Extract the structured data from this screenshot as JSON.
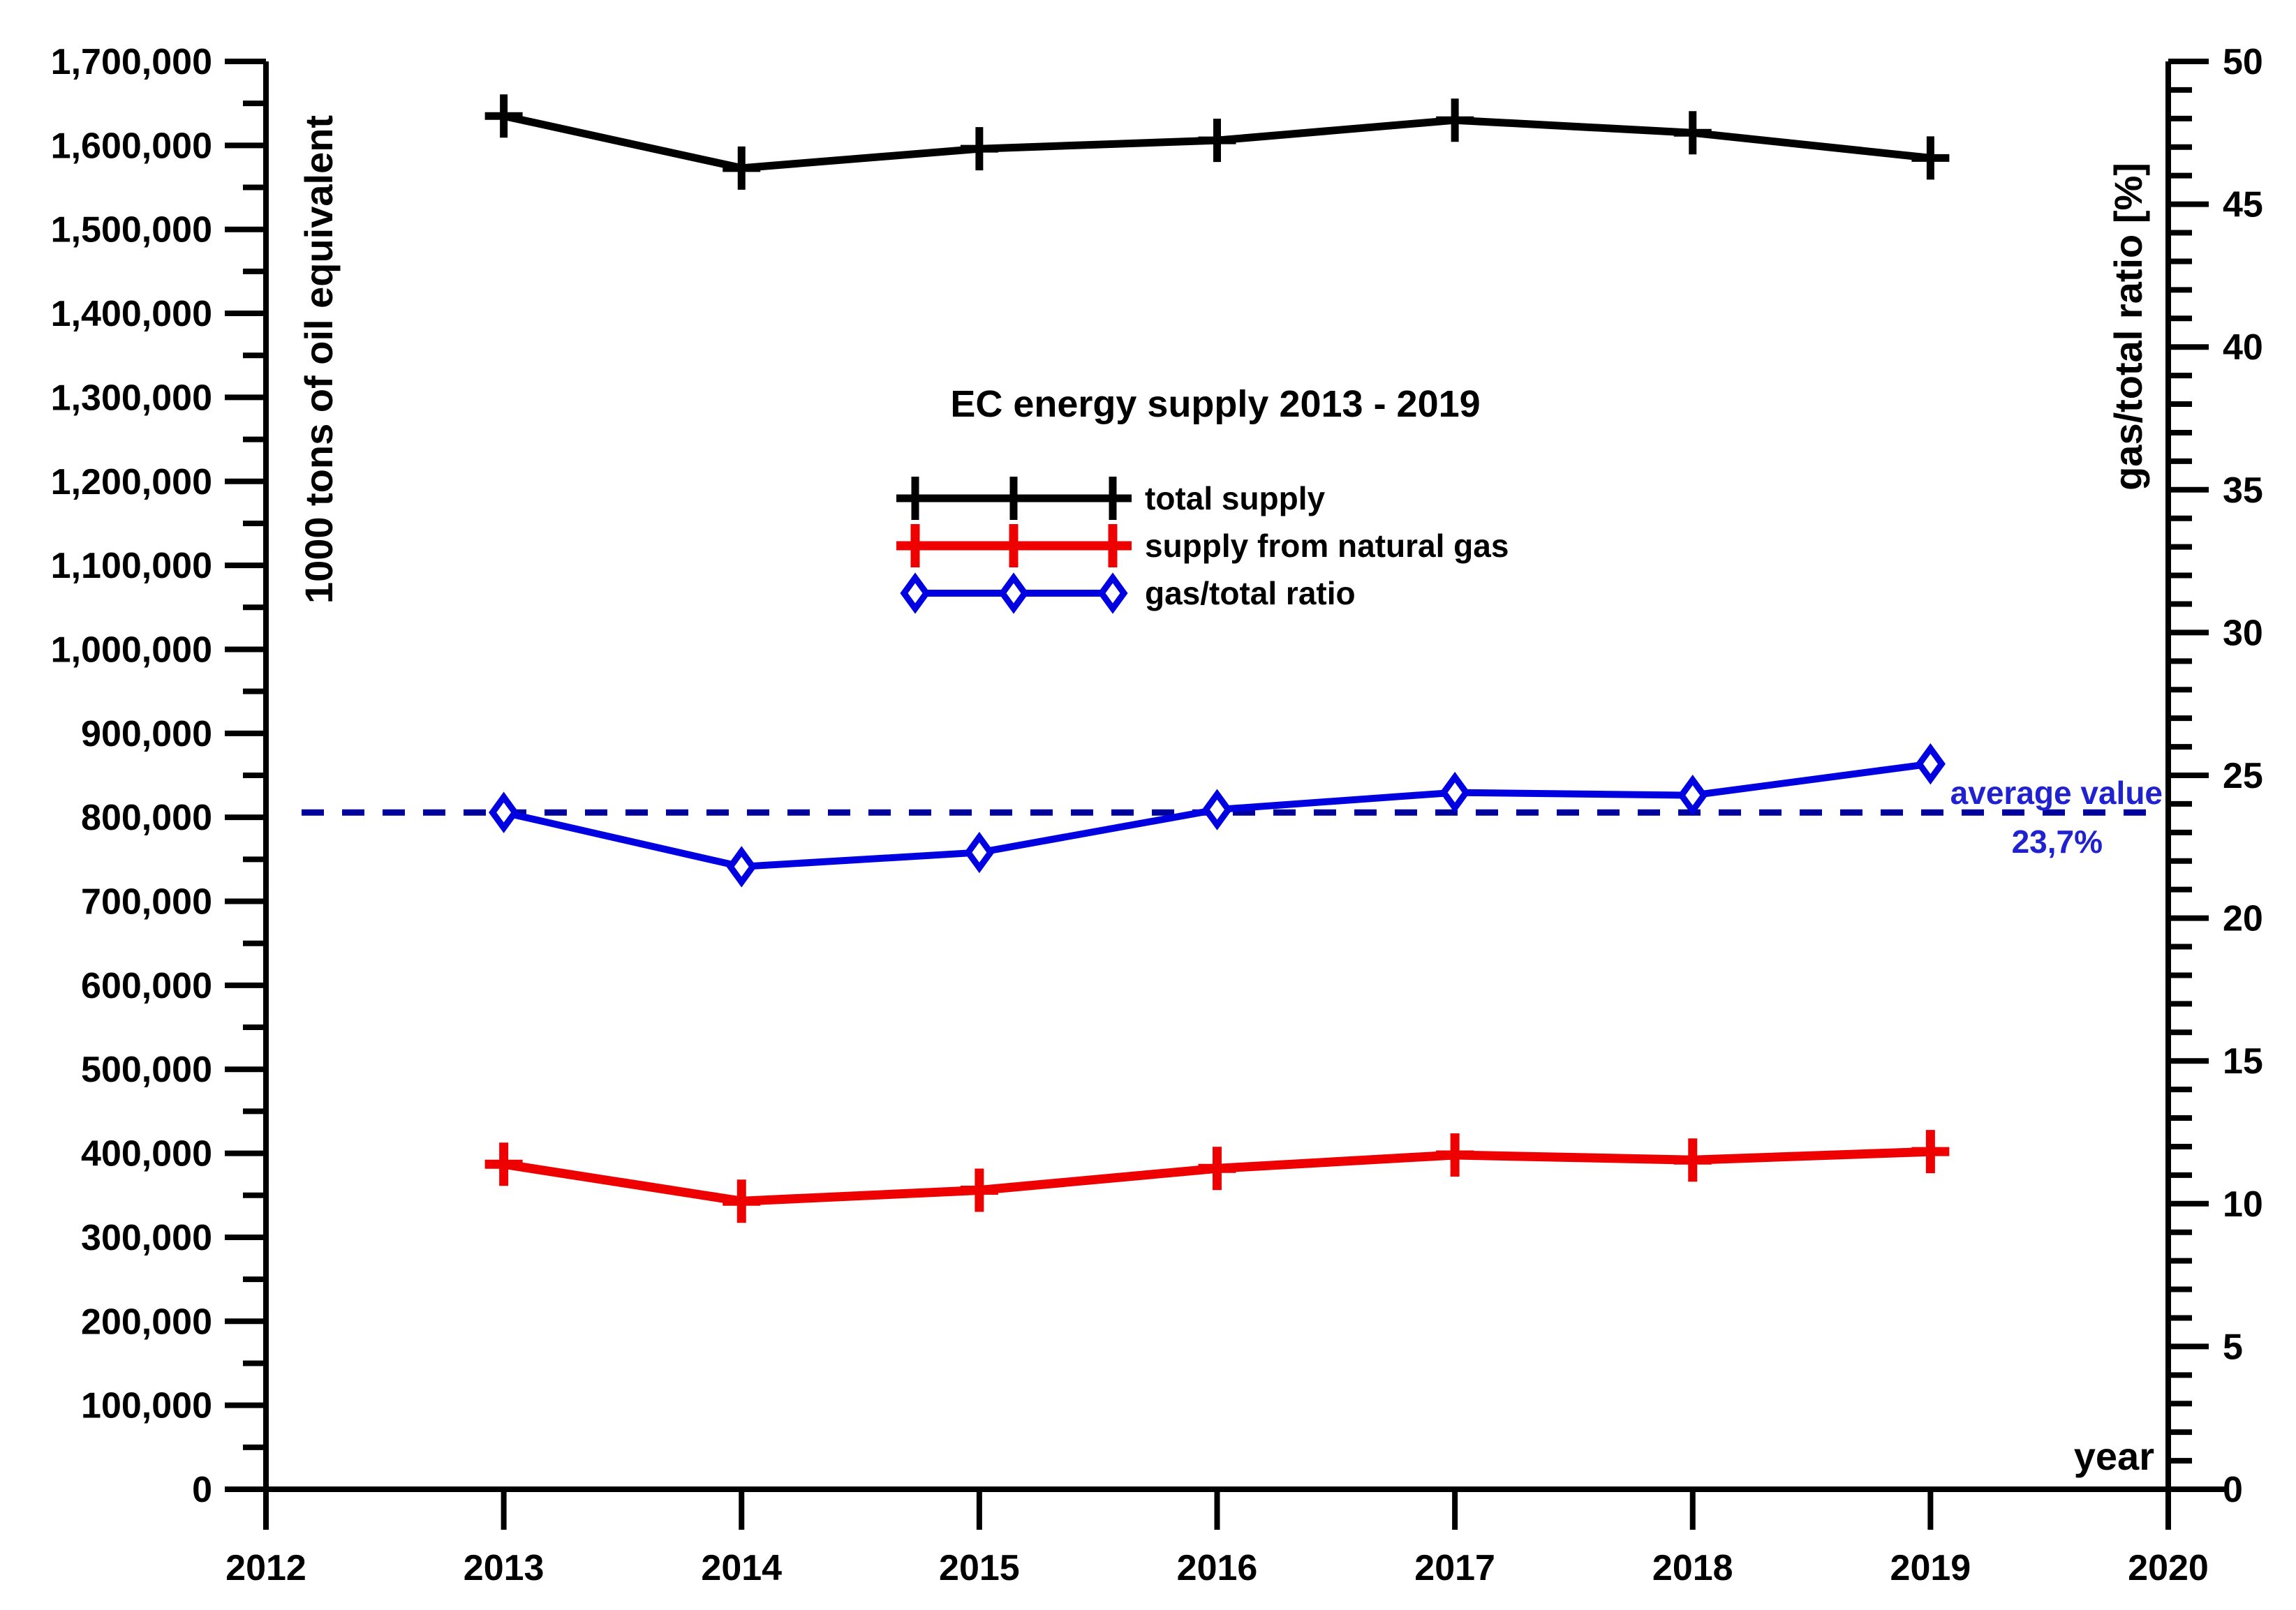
{
  "chart_data": {
    "type": "line",
    "title": "EC energy supply 2013 - 2019",
    "background": "#ffffff",
    "grid": false,
    "x": [
      2013,
      2014,
      2015,
      2016,
      2017,
      2018,
      2019
    ],
    "series": [
      {
        "name": "total supply",
        "axis": "left",
        "color": "#000000",
        "marker": "plus",
        "values": [
          1635000,
          1573000,
          1596000,
          1606000,
          1630000,
          1615000,
          1585000
        ]
      },
      {
        "name": "supply from natural gas",
        "axis": "left",
        "color": "#ee0000",
        "marker": "plus",
        "values": [
          387000,
          343000,
          356000,
          382000,
          398000,
          392000,
          402000
        ]
      },
      {
        "name": "gas/total ratio",
        "axis": "right",
        "color": "#0000e0",
        "marker": "diamond",
        "values": [
          23.7,
          21.8,
          22.3,
          23.8,
          24.4,
          24.3,
          25.4
        ]
      }
    ],
    "left_axis": {
      "label": "1000 tons of oil equivalent",
      "min": 0,
      "max": 1700000,
      "major_step": 100000,
      "minor_step": 50000
    },
    "right_axis": {
      "label": "gas/total ratio [%]",
      "min": 0,
      "max": 50,
      "major_step": 5,
      "minor_step": 1
    },
    "x_axis": {
      "label": "year",
      "min": 2012,
      "max": 2020,
      "step": 1
    },
    "average_line": {
      "value": 23.7,
      "axis": "right",
      "style": "dashed",
      "color": "#00009a",
      "label_line1": "average value",
      "label_line2": "23,7%",
      "label_color": "#2021cf"
    },
    "legend": {
      "position": "inside-upper-center"
    }
  }
}
